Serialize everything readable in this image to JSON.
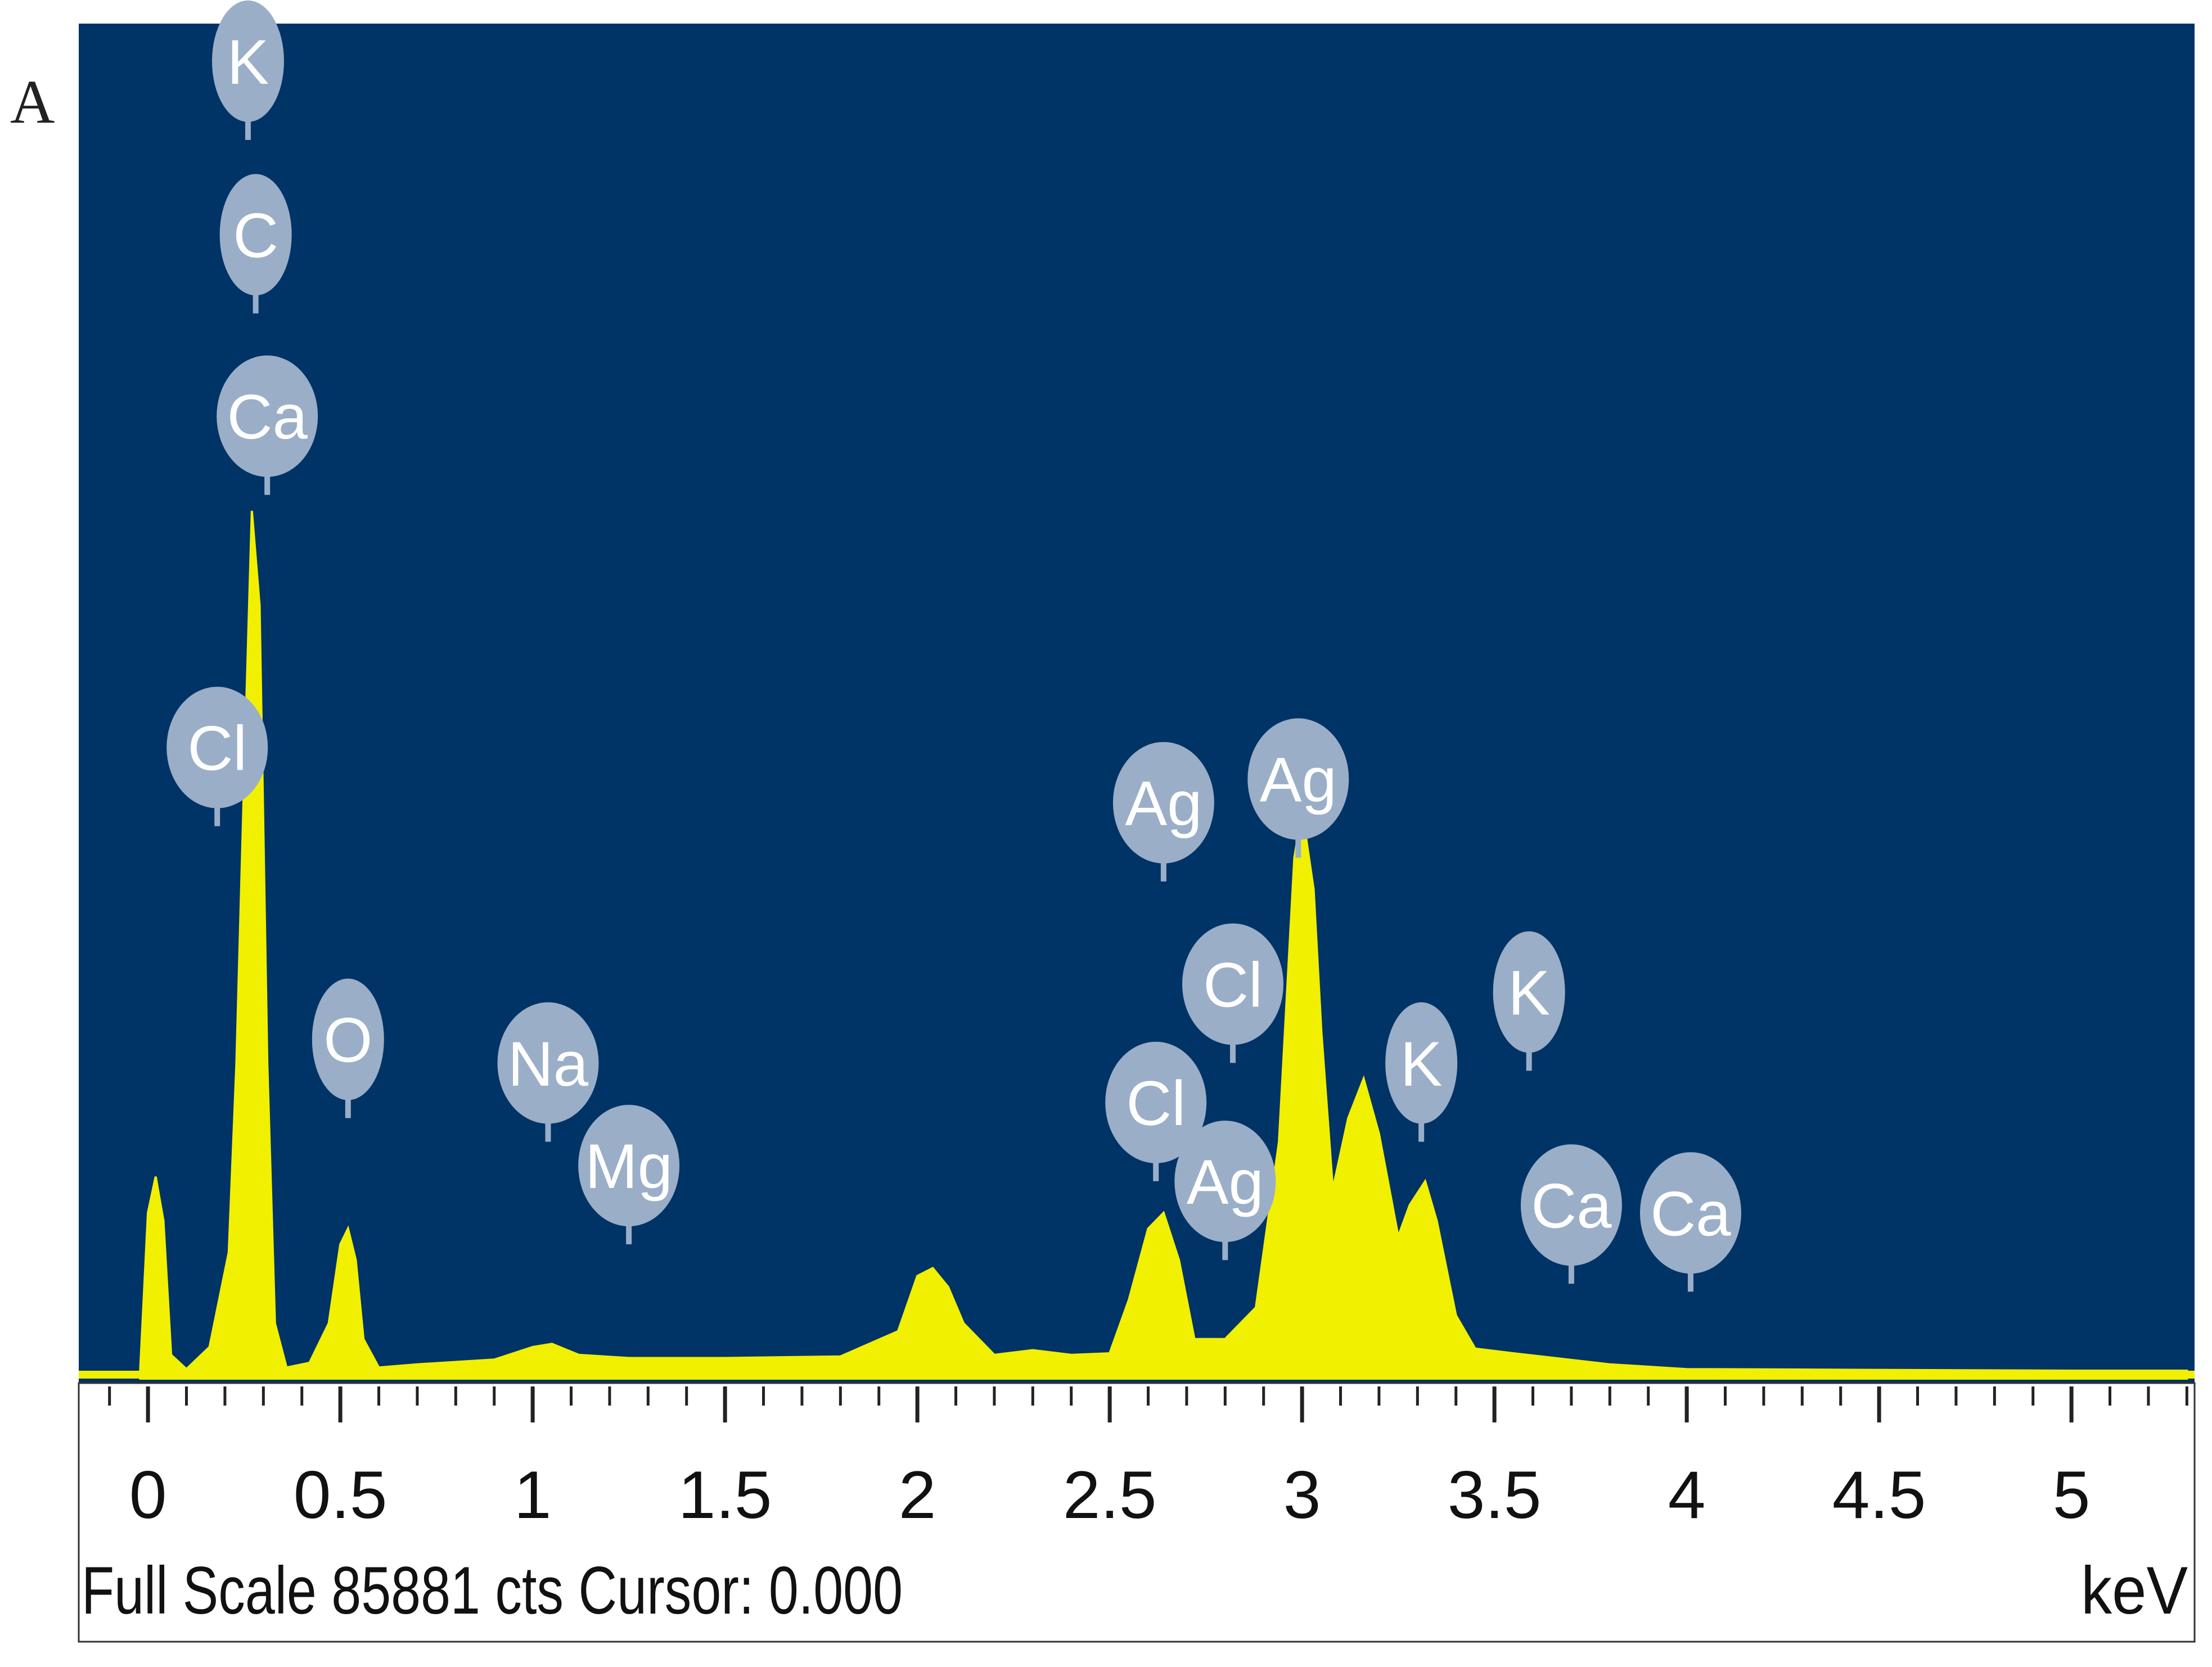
{
  "panel_label": "A",
  "footer": {
    "full_scale_label": "Full Scale 85881 cts Cursor: 0.000",
    "unit": "keV"
  },
  "colors": {
    "plot_bg": "#003366",
    "spectrum": "#f0f000",
    "marker_fill": "#9aaec8",
    "marker_text": "#ffffff",
    "axis": "#222222"
  },
  "chart_data": {
    "type": "area",
    "xlabel": "keV",
    "ylabel": "",
    "xlim": [
      -0.18,
      5.32
    ],
    "ylim": [
      0,
      85881
    ],
    "x_ticks": [
      "0",
      "0.5",
      "1",
      "1.5",
      "2",
      "2.5",
      "3",
      "3.5",
      "4",
      "4.5",
      "5"
    ],
    "full_scale_cts": 85881,
    "cursor_kev": 0.0,
    "spectrum": {
      "x": [
        -0.02,
        0.0,
        0.02,
        0.04,
        0.06,
        0.1,
        0.16,
        0.21,
        0.23,
        0.25,
        0.27,
        0.29,
        0.31,
        0.33,
        0.36,
        0.42,
        0.47,
        0.5,
        0.52,
        0.54,
        0.56,
        0.6,
        0.7,
        0.9,
        1.0,
        1.05,
        1.12,
        1.25,
        1.5,
        1.8,
        1.95,
        2.0,
        2.04,
        2.08,
        2.12,
        2.2,
        2.3,
        2.4,
        2.5,
        2.55,
        2.6,
        2.64,
        2.68,
        2.72,
        2.8,
        2.88,
        2.94,
        2.98,
        3.0,
        3.03,
        3.05,
        3.08,
        3.12,
        3.16,
        3.2,
        3.25,
        3.28,
        3.32,
        3.35,
        3.4,
        3.45,
        3.55,
        3.8,
        4.0,
        4.5,
        5.0,
        5.3
      ],
      "y": [
        600,
        10500,
        12800,
        10000,
        1500,
        600,
        2000,
        8000,
        20000,
        38000,
        55000,
        49000,
        20000,
        3500,
        700,
        1000,
        3500,
        8500,
        9500,
        7500,
        2500,
        700,
        900,
        1200,
        2000,
        2200,
        1500,
        1300,
        1300,
        1400,
        3000,
        6500,
        7000,
        5800,
        3500,
        1500,
        1800,
        1500,
        1600,
        5000,
        9500,
        10500,
        7500,
        2500,
        2500,
        4500,
        15000,
        33000,
        36000,
        31000,
        22000,
        12000,
        16500,
        19000,
        15500,
        9000,
        11000,
        12500,
        10000,
        4000,
        1900,
        1600,
        900,
        600,
        550,
        500,
        500
      ]
    },
    "peak_labels": [
      {
        "element": "Cl",
        "x": 0.18,
        "y": 40000
      },
      {
        "element": "Ca",
        "x": 0.31,
        "y": 61000
      },
      {
        "element": "C",
        "x": 0.28,
        "y": 72500
      },
      {
        "element": "K",
        "x": 0.26,
        "y": 83500
      },
      {
        "element": "O",
        "x": 0.52,
        "y": 21500
      },
      {
        "element": "Na",
        "x": 1.04,
        "y": 20000
      },
      {
        "element": "Mg",
        "x": 1.25,
        "y": 13500
      },
      {
        "element": "Cl",
        "x": 2.62,
        "y": 17500
      },
      {
        "element": "Ag",
        "x": 2.64,
        "y": 36500
      },
      {
        "element": "Ag",
        "x": 2.8,
        "y": 12500
      },
      {
        "element": "Cl",
        "x": 2.82,
        "y": 25000
      },
      {
        "element": "Ag",
        "x": 2.99,
        "y": 38000
      },
      {
        "element": "K",
        "x": 3.31,
        "y": 20000
      },
      {
        "element": "K",
        "x": 3.59,
        "y": 24500
      },
      {
        "element": "Ca",
        "x": 3.7,
        "y": 11000
      },
      {
        "element": "Ca",
        "x": 4.01,
        "y": 10500
      }
    ]
  }
}
